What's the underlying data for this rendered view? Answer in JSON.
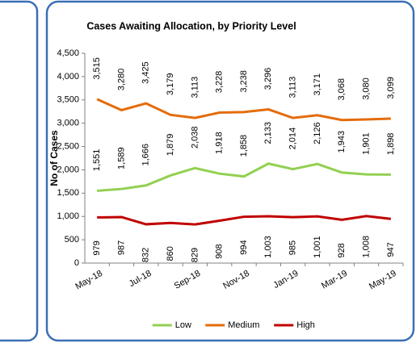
{
  "chart_data": {
    "type": "line",
    "title": "Cases Awaiting Allocation, by Priority Level",
    "y_label": "No of Cases",
    "categories": [
      "May-18",
      null,
      "Jul-18",
      null,
      "Sep-18",
      null,
      "Nov-18",
      null,
      "Jan-19",
      null,
      "Mar-19",
      null,
      "May-19"
    ],
    "ylim": [
      0,
      4500
    ],
    "yticks": [
      0,
      500,
      {
        "value": 1000,
        "label": "1,000"
      },
      {
        "value": 1500,
        "label": "1,500"
      },
      {
        "value": 2000,
        "label": "2,000"
      },
      {
        "value": 2500,
        "label": "2,500"
      },
      {
        "value": 3000,
        "label": "3,000"
      },
      {
        "value": 3500,
        "label": "3,500"
      },
      {
        "value": 4000,
        "label": "4,000"
      },
      {
        "value": 4500,
        "label": "4,500"
      }
    ],
    "legend": "bottom",
    "series": [
      {
        "name": "Low",
        "color": "#92d050",
        "values": [
          1551,
          1589,
          1666,
          1879,
          2038,
          1918,
          1858,
          2133,
          2014,
          2126,
          1943,
          1901,
          1898
        ],
        "value_labels": [
          "1,551",
          "1,589",
          "1,666",
          "1,879",
          "2,038",
          "1,918",
          "1,858",
          "2,133",
          "2,014",
          "2,126",
          "1,943",
          "1,901",
          "1,898"
        ]
      },
      {
        "name": "Medium",
        "color": "#e46c0a",
        "values": [
          3515,
          3280,
          3425,
          3179,
          3113,
          3228,
          3238,
          3296,
          3113,
          3171,
          3068,
          3080,
          3099
        ],
        "value_labels": [
          "3,515",
          "3,280",
          "3,425",
          "3,179",
          "3,113",
          "3,228",
          "3,238",
          "3,296",
          "3,113",
          "3,171",
          "3,068",
          "3,080",
          "3,099"
        ]
      },
      {
        "name": "High",
        "color": "#c00000",
        "values": [
          979,
          987,
          832,
          860,
          829,
          908,
          994,
          1003,
          985,
          1001,
          928,
          1008,
          947
        ],
        "value_labels": [
          "979",
          "987",
          "832",
          "860",
          "829",
          "908",
          "994",
          "1,003",
          "985",
          "1,001",
          "928",
          "1,008",
          "947"
        ]
      }
    ]
  }
}
